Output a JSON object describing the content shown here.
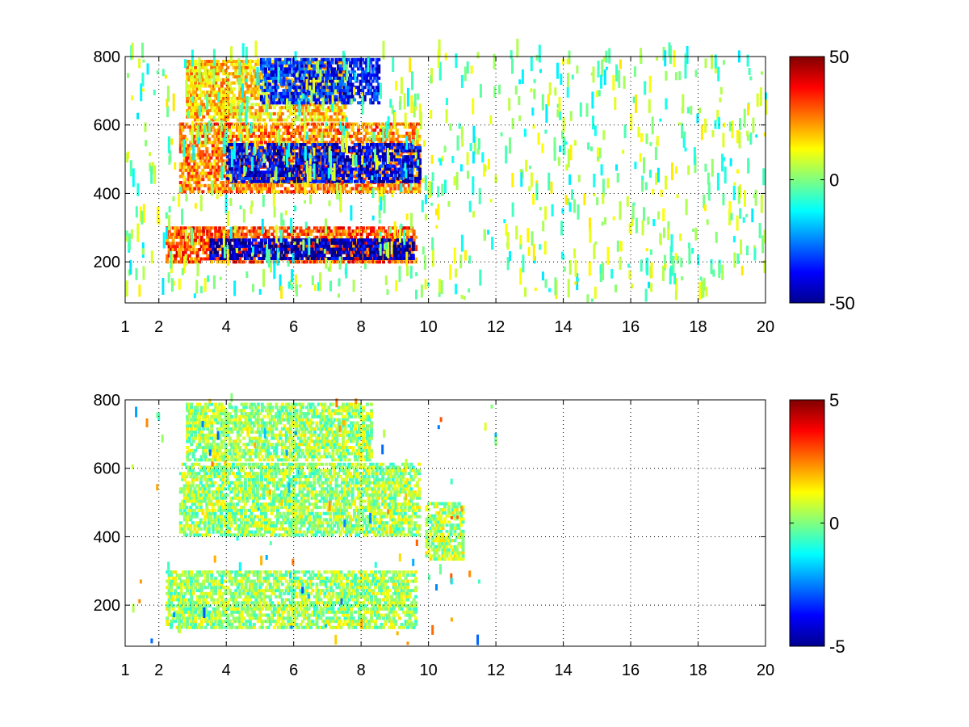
{
  "chart_data": [
    {
      "type": "heatmap",
      "title": "",
      "xlabel": "",
      "ylabel": "",
      "xlim": [
        1,
        20
      ],
      "ylim": [
        80,
        800
      ],
      "x_ticks": [
        1,
        2,
        4,
        6,
        8,
        10,
        12,
        14,
        16,
        18,
        20
      ],
      "y_ticks": [
        200,
        400,
        600,
        800
      ],
      "grid": true,
      "colormap": "jet",
      "colorbar": {
        "range": [
          -50,
          50
        ],
        "ticks": [
          50,
          0,
          -50
        ],
        "location": "right"
      },
      "background": "#ffffff",
      "bands": [
        {
          "x_start": 2.2,
          "x_end": 9.6,
          "y_start": 195,
          "y_end": 300,
          "mean_value": 30
        },
        {
          "x_start": 3.5,
          "x_end": 9.5,
          "y_start": 205,
          "y_end": 260,
          "mean_value": -45
        },
        {
          "x_start": 2.6,
          "x_end": 9.7,
          "y_start": 400,
          "y_end": 600,
          "mean_value": 25
        },
        {
          "x_start": 4.0,
          "x_end": 9.7,
          "y_start": 430,
          "y_end": 540,
          "mean_value": -40
        },
        {
          "x_start": 2.8,
          "x_end": 7.5,
          "y_start": 610,
          "y_end": 790,
          "mean_value": 18
        },
        {
          "x_start": 5.0,
          "x_end": 8.5,
          "y_start": 660,
          "y_end": 790,
          "mean_value": -35
        }
      ],
      "scattered_noise": {
        "x_range": [
          1,
          20
        ],
        "value_range": [
          -15,
          15
        ]
      }
    },
    {
      "type": "heatmap",
      "title": "",
      "xlabel": "",
      "ylabel": "",
      "xlim": [
        1,
        20
      ],
      "ylim": [
        80,
        800
      ],
      "x_ticks": [
        1,
        2,
        4,
        6,
        8,
        10,
        12,
        14,
        16,
        18,
        20
      ],
      "y_ticks": [
        200,
        400,
        600,
        800
      ],
      "grid": true,
      "colormap": "jet",
      "colorbar": {
        "range": [
          -5,
          5
        ],
        "ticks": [
          5,
          0,
          -5
        ],
        "location": "right"
      },
      "background": "#ffffff",
      "bands": [
        {
          "x_start": 2.2,
          "x_end": 9.6,
          "y_start": 130,
          "y_end": 300,
          "mean_value": 0.3
        },
        {
          "x_start": 2.6,
          "x_end": 9.7,
          "y_start": 400,
          "y_end": 610,
          "mean_value": 0.3
        },
        {
          "x_start": 2.8,
          "x_end": 8.3,
          "y_start": 620,
          "y_end": 790,
          "mean_value": 0.3
        },
        {
          "x_start": 9.9,
          "x_end": 11.0,
          "y_start": 330,
          "y_end": 500,
          "mean_value": 0.4
        }
      ],
      "scattered_noise": {
        "x_range": [
          1,
          12
        ],
        "value_range": [
          -3,
          3
        ]
      }
    }
  ]
}
